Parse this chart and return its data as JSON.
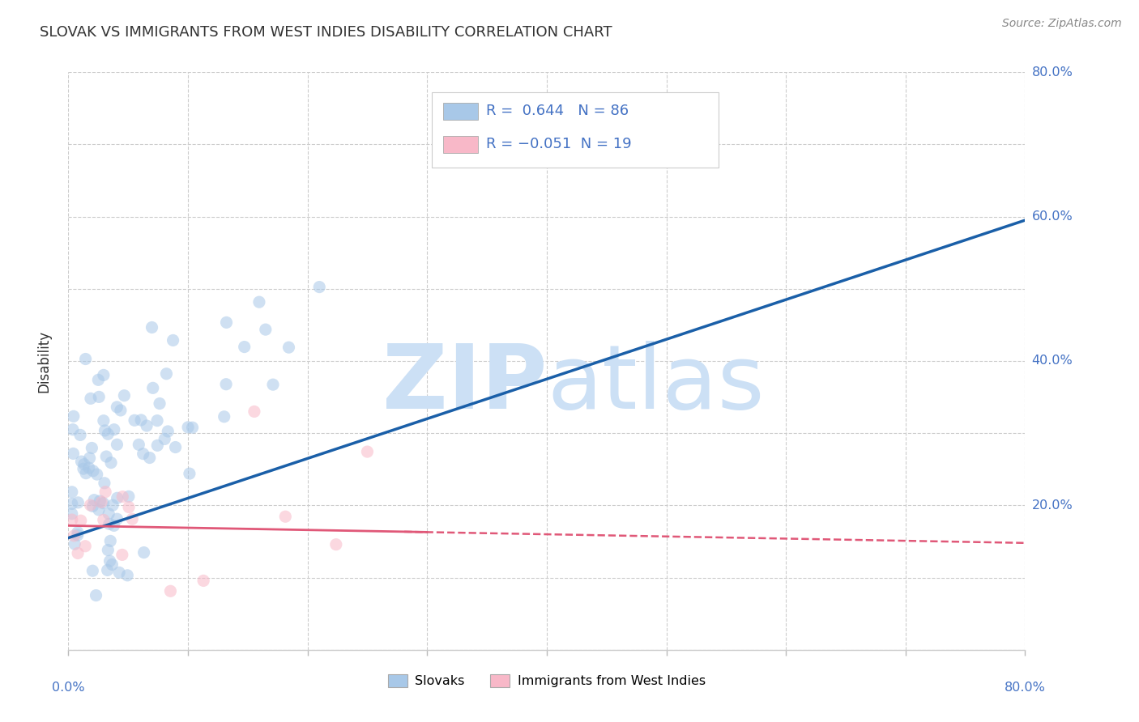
{
  "title": "SLOVAK VS IMMIGRANTS FROM WEST INDIES DISABILITY CORRELATION CHART",
  "source": "Source: ZipAtlas.com",
  "ylabel": "Disability",
  "r_slovak": 0.644,
  "n_slovak": 86,
  "r_westindies": -0.051,
  "n_westindies": 19,
  "blue_color": "#a8c8e8",
  "blue_line_color": "#1a5fa8",
  "pink_color": "#f8b8c8",
  "pink_line_color": "#e05878",
  "legend_label1": "Slovaks",
  "legend_label2": "Immigrants from West Indies",
  "xlim": [
    0.0,
    0.8
  ],
  "ylim": [
    0.0,
    0.8
  ],
  "watermark_text": "ZIPatlas",
  "watermark_color": "#ddeeff",
  "blue_line_x0": 0.0,
  "blue_line_y0": 0.155,
  "blue_line_x1": 0.8,
  "blue_line_y1": 0.595,
  "pink_line_x0": 0.0,
  "pink_line_x1": 0.8,
  "pink_line_y0": 0.172,
  "pink_line_y1": 0.148
}
